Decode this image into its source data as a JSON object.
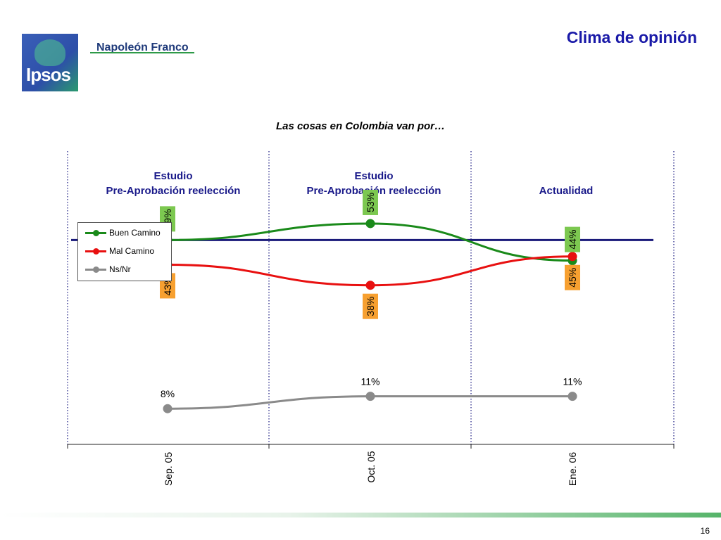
{
  "header": {
    "logo_text": "Ipsos",
    "brand": "Napoleón Franco",
    "title": "Clima de opinión"
  },
  "subtitle": "Las cosas en Colombia van por…",
  "periods": [
    {
      "line1": "Estudio",
      "line2": "Pre-Aprobación reelección"
    },
    {
      "line1": "Estudio",
      "line2": "Pre-Aprobación reelección"
    },
    {
      "line1": "",
      "line2": "Actualidad"
    }
  ],
  "legend": [
    {
      "label": "Buen Camino"
    },
    {
      "label": "Mal Camino"
    },
    {
      "label": "Ns/Nr"
    }
  ],
  "chart_data": {
    "type": "line",
    "title": "Las cosas en Colombia van por…",
    "categories": [
      "Sep. 05",
      "Oct. 05",
      "Ene. 06"
    ],
    "series": [
      {
        "name": "Buen Camino",
        "values": [
          49,
          53,
          44
        ],
        "labels": [
          "49%",
          "53%",
          "44%"
        ],
        "color": "#1a8a1a",
        "label_bg": "#7cc850"
      },
      {
        "name": "Mal Camino",
        "values": [
          43,
          38,
          45
        ],
        "labels": [
          "43%",
          "38%",
          "45%"
        ],
        "color": "#e81010",
        "label_bg": "#f7a030"
      },
      {
        "name": "Ns/Nr",
        "values": [
          8,
          11,
          11
        ],
        "labels": [
          "8%",
          "11%",
          "11%"
        ],
        "color": "#8a8a8a"
      }
    ],
    "reference_line_color": "#1a1a7a",
    "ylim": [
      0,
      60
    ],
    "legend_position": "top-left",
    "grid": false
  },
  "footer": {
    "page_number": "16"
  }
}
